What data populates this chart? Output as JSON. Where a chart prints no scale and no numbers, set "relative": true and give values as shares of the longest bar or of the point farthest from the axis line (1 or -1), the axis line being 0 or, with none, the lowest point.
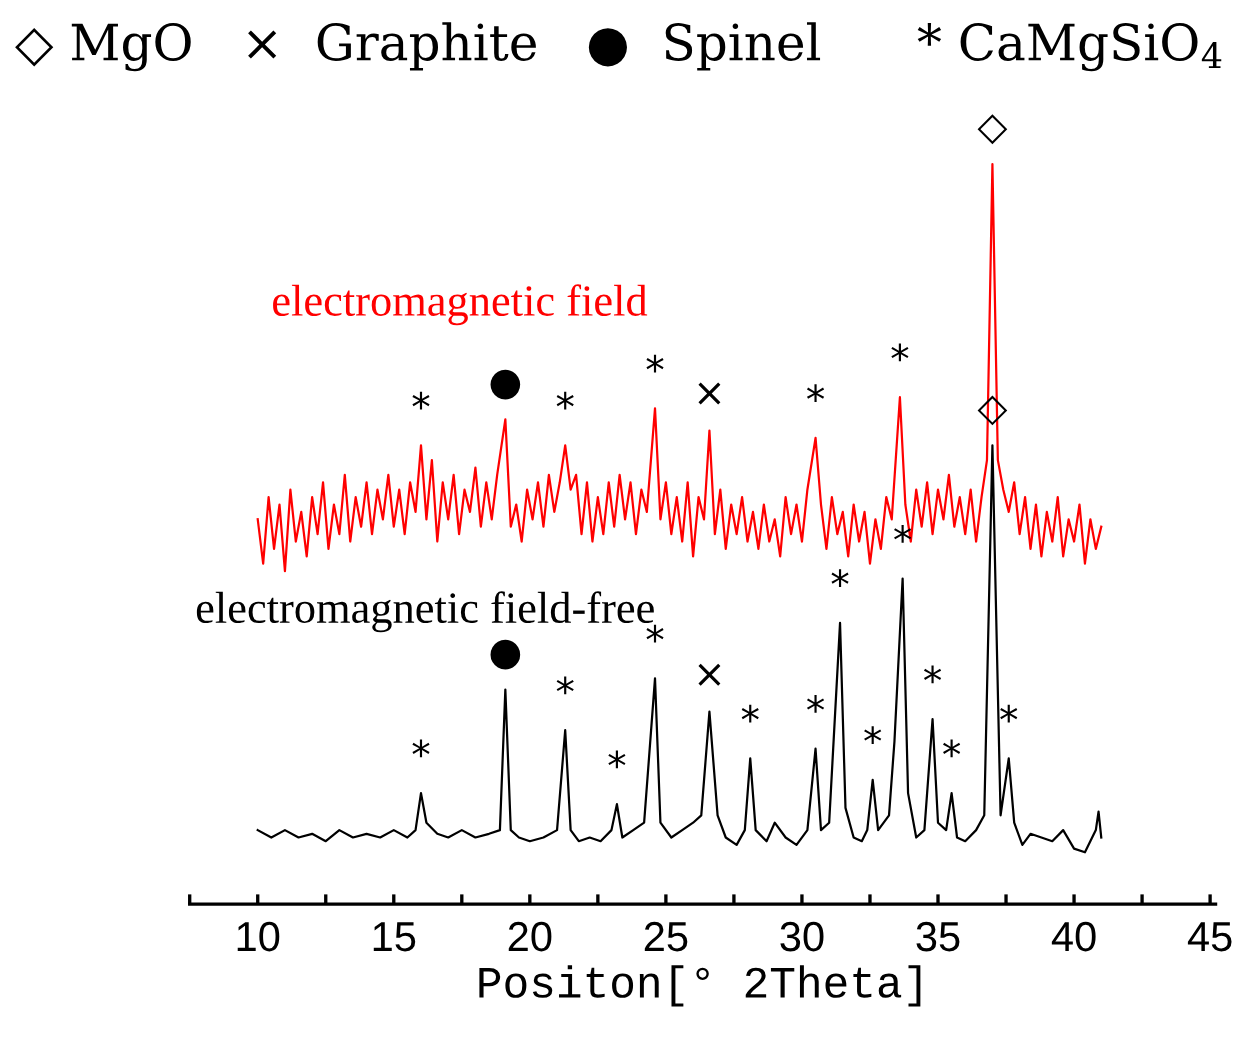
{
  "chart_data": {
    "type": "line",
    "relative": true,
    "xlabel": "Positon[° 2Theta]",
    "tick_labels": "x",
    "xlim": [
      7.5,
      45.2
    ],
    "xticks": [
      {
        "value": 7.5,
        "label": null
      },
      10,
      {
        "value": 12.5,
        "label": null
      },
      15,
      {
        "value": 17.5,
        "label": null
      },
      20,
      {
        "value": 22.5,
        "label": null
      },
      25,
      {
        "value": 27.5,
        "label": null
      },
      30,
      {
        "value": 32.5,
        "label": null
      },
      35,
      {
        "value": 37.5,
        "label": null
      },
      40,
      {
        "value": 42.5,
        "label": null
      },
      45
    ],
    "series": [
      {
        "name": "electromagnetic field",
        "color": "#ff0000",
        "x": [
          10.0,
          10.2,
          10.4,
          10.6,
          10.8,
          11.0,
          11.2,
          11.4,
          11.6,
          11.8,
          12.0,
          12.2,
          12.4,
          12.6,
          12.8,
          13.0,
          13.2,
          13.4,
          13.6,
          13.8,
          14.0,
          14.2,
          14.4,
          14.6,
          14.8,
          15.0,
          15.2,
          15.4,
          15.6,
          15.8,
          16.0,
          16.2,
          16.4,
          16.6,
          16.8,
          17.0,
          17.2,
          17.4,
          17.6,
          17.8,
          18.0,
          18.2,
          18.4,
          18.6,
          18.8,
          19.1,
          19.3,
          19.5,
          19.7,
          19.9,
          20.1,
          20.3,
          20.5,
          20.7,
          20.9,
          21.1,
          21.3,
          21.5,
          21.7,
          21.9,
          22.1,
          22.3,
          22.5,
          22.7,
          22.9,
          23.1,
          23.3,
          23.5,
          23.7,
          23.9,
          24.1,
          24.3,
          24.6,
          24.8,
          25.0,
          25.2,
          25.4,
          25.6,
          25.8,
          26.0,
          26.2,
          26.4,
          26.6,
          26.8,
          27.0,
          27.2,
          27.4,
          27.6,
          27.8,
          28.0,
          28.2,
          28.4,
          28.6,
          28.8,
          29.0,
          29.2,
          29.4,
          29.6,
          29.8,
          30.0,
          30.2,
          30.5,
          30.7,
          30.9,
          31.1,
          31.3,
          31.5,
          31.7,
          31.9,
          32.1,
          32.3,
          32.5,
          32.7,
          32.9,
          33.1,
          33.3,
          33.6,
          33.8,
          34.0,
          34.2,
          34.4,
          34.6,
          34.8,
          35.0,
          35.2,
          35.4,
          35.6,
          35.8,
          36.0,
          36.2,
          36.4,
          36.6,
          36.8,
          37.0,
          37.2,
          37.4,
          37.6,
          37.8,
          38.0,
          38.2,
          38.4,
          38.6,
          38.8,
          39.0,
          39.2,
          39.4,
          39.6,
          39.8,
          40.0,
          40.2,
          40.4,
          40.6,
          40.8,
          41.0
        ],
        "values": [
          0.52,
          0.46,
          0.55,
          0.48,
          0.54,
          0.45,
          0.56,
          0.49,
          0.53,
          0.47,
          0.55,
          0.5,
          0.57,
          0.48,
          0.54,
          0.5,
          0.58,
          0.49,
          0.55,
          0.51,
          0.57,
          0.5,
          0.56,
          0.52,
          0.58,
          0.51,
          0.56,
          0.5,
          0.57,
          0.53,
          0.62,
          0.52,
          0.6,
          0.49,
          0.57,
          0.52,
          0.58,
          0.5,
          0.56,
          0.53,
          0.59,
          0.51,
          0.57,
          0.52,
          0.58,
          0.655,
          0.51,
          0.54,
          0.49,
          0.56,
          0.52,
          0.57,
          0.51,
          0.58,
          0.53,
          0.57,
          0.62,
          0.56,
          0.58,
          0.5,
          0.57,
          0.49,
          0.55,
          0.5,
          0.57,
          0.51,
          0.58,
          0.52,
          0.57,
          0.5,
          0.56,
          0.53,
          0.67,
          0.52,
          0.57,
          0.5,
          0.55,
          0.49,
          0.57,
          0.47,
          0.55,
          0.52,
          0.64,
          0.5,
          0.56,
          0.48,
          0.54,
          0.5,
          0.55,
          0.49,
          0.53,
          0.48,
          0.54,
          0.49,
          0.52,
          0.47,
          0.55,
          0.5,
          0.54,
          0.49,
          0.56,
          0.63,
          0.54,
          0.48,
          0.55,
          0.5,
          0.53,
          0.47,
          0.54,
          0.49,
          0.53,
          0.46,
          0.52,
          0.48,
          0.55,
          0.52,
          0.685,
          0.54,
          0.49,
          0.56,
          0.51,
          0.57,
          0.5,
          0.56,
          0.52,
          0.58,
          0.51,
          0.55,
          0.5,
          0.56,
          0.49,
          0.55,
          0.6,
          1.0,
          0.6,
          0.56,
          0.53,
          0.57,
          0.5,
          0.55,
          0.48,
          0.54,
          0.47,
          0.53,
          0.49,
          0.55,
          0.47,
          0.52,
          0.49,
          0.54,
          0.46,
          0.52,
          0.48,
          0.51
        ]
      },
      {
        "name": "electromagnetic field-free",
        "color": "#000000",
        "x": [
          10.0,
          10.5,
          11.0,
          11.5,
          12.0,
          12.5,
          13.0,
          13.5,
          14.0,
          14.5,
          15.0,
          15.5,
          15.8,
          16.0,
          16.2,
          16.6,
          17.0,
          17.5,
          18.0,
          18.5,
          18.9,
          19.1,
          19.3,
          19.6,
          20.0,
          20.5,
          21.0,
          21.3,
          21.5,
          21.8,
          22.2,
          22.6,
          23.0,
          23.2,
          23.4,
          23.8,
          24.2,
          24.6,
          24.8,
          25.2,
          25.6,
          26.0,
          26.3,
          26.6,
          26.9,
          27.2,
          27.6,
          27.9,
          28.1,
          28.3,
          28.7,
          29.0,
          29.4,
          29.8,
          30.2,
          30.5,
          30.7,
          31.0,
          31.4,
          31.6,
          31.9,
          32.2,
          32.4,
          32.6,
          32.8,
          33.2,
          33.4,
          33.7,
          33.9,
          34.2,
          34.5,
          34.8,
          35.0,
          35.3,
          35.5,
          35.7,
          36.0,
          36.4,
          36.7,
          37.0,
          37.3,
          37.6,
          37.8,
          38.1,
          38.4,
          38.8,
          39.2,
          39.6,
          40.0,
          40.4,
          40.8,
          40.9,
          41.0
        ],
        "values": [
          0.1,
          0.09,
          0.1,
          0.09,
          0.095,
          0.085,
          0.1,
          0.09,
          0.095,
          0.09,
          0.1,
          0.09,
          0.1,
          0.15,
          0.11,
          0.095,
          0.09,
          0.1,
          0.09,
          0.095,
          0.1,
          0.29,
          0.1,
          0.09,
          0.085,
          0.09,
          0.1,
          0.235,
          0.1,
          0.085,
          0.09,
          0.085,
          0.1,
          0.135,
          0.09,
          0.1,
          0.11,
          0.305,
          0.11,
          0.09,
          0.1,
          0.11,
          0.12,
          0.26,
          0.12,
          0.09,
          0.08,
          0.1,
          0.197,
          0.1,
          0.085,
          0.11,
          0.09,
          0.08,
          0.1,
          0.21,
          0.1,
          0.11,
          0.38,
          0.13,
          0.09,
          0.085,
          0.1,
          0.168,
          0.1,
          0.12,
          0.22,
          0.44,
          0.15,
          0.09,
          0.1,
          0.25,
          0.11,
          0.1,
          0.15,
          0.09,
          0.085,
          0.1,
          0.12,
          0.62,
          0.12,
          0.197,
          0.11,
          0.08,
          0.095,
          0.09,
          0.085,
          0.1,
          0.075,
          0.07,
          0.1,
          0.125,
          0.09
        ]
      }
    ],
    "annotations": [
      "◇ MgO   ×  Graphite   ●  Spinel      * CaMgSiO$_{4}$",
      {
        "text": "*",
        "x": 16.0,
        "y": 0.62
      },
      {
        "text": "●",
        "x": 19.1,
        "y": 0.655
      },
      {
        "text": "*",
        "x": 21.3,
        "y": 0.62
      },
      {
        "text": "*",
        "x": 24.6,
        "y": 0.67
      },
      {
        "text": "×",
        "x": 26.6,
        "y": 0.64
      },
      {
        "text": "*",
        "x": 30.5,
        "y": 0.63
      },
      {
        "text": "*",
        "x": 33.6,
        "y": 0.685
      },
      {
        "text": "◇",
        "x": 37.0,
        "y": 1.0
      },
      {
        "text": "*",
        "x": 16.0,
        "y": 0.15
      },
      {
        "text": "●",
        "x": 19.1,
        "y": 0.29
      },
      {
        "text": "*",
        "x": 21.3,
        "y": 0.235
      },
      {
        "text": "*",
        "x": 23.2,
        "y": 0.135
      },
      {
        "text": "*",
        "x": 24.6,
        "y": 0.305
      },
      {
        "text": "×",
        "x": 26.6,
        "y": 0.26
      },
      {
        "text": "*",
        "x": 28.1,
        "y": 0.197
      },
      {
        "text": "*",
        "x": 30.5,
        "y": 0.21
      },
      {
        "text": "*",
        "x": 31.4,
        "y": 0.38
      },
      {
        "text": "*",
        "x": 32.6,
        "y": 0.168
      },
      {
        "text": "*",
        "x": 33.7,
        "y": 0.44
      },
      {
        "text": "*",
        "x": 34.8,
        "y": 0.25
      },
      {
        "text": "*",
        "x": 35.5,
        "y": 0.15
      },
      {
        "text": "◇",
        "x": 37.0,
        "y": 0.62
      },
      {
        "text": "*",
        "x": 37.6,
        "y": 0.197
      }
    ]
  }
}
